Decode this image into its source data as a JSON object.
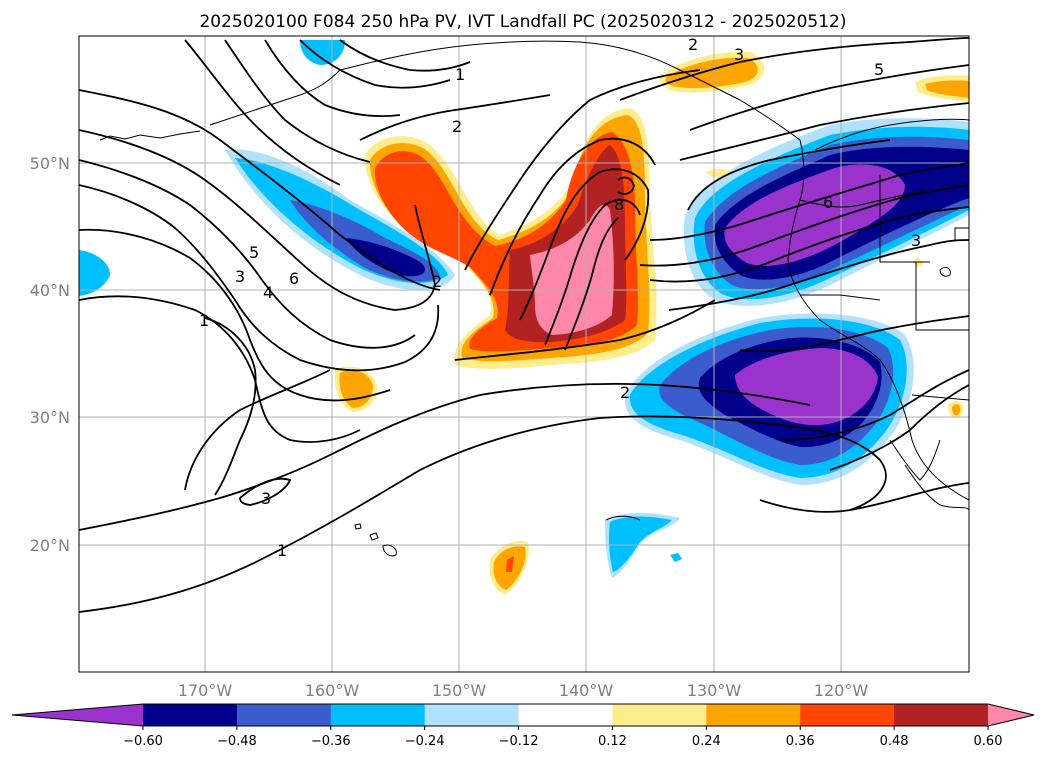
{
  "title": "2025020100 F084 250 hPa PV, IVT Landfall PC (2025020312 - 2025020512)",
  "map": {
    "lon_range": [
      -180,
      -110
    ],
    "lat_range": [
      10,
      60
    ],
    "lon_ticks": [
      "170°W",
      "160°W",
      "150°W",
      "140°W",
      "130°W",
      "120°W"
    ],
    "lat_ticks": [
      "50°N",
      "40°N",
      "30°N",
      "20°N"
    ],
    "grid": true
  },
  "contour_labels": [
    "2",
    "3",
    "5",
    "1",
    "2",
    "8",
    "6",
    "3",
    "5",
    "6",
    "3",
    "4",
    "2",
    "1",
    "2",
    "3",
    "1"
  ],
  "colorbar": {
    "ticks": [
      "−0.60",
      "−0.48",
      "−0.36",
      "−0.24",
      "−0.12",
      "0.12",
      "0.24",
      "0.36",
      "0.48",
      "0.60"
    ],
    "colors": [
      "#9933cc",
      "#00008b",
      "#3a5ccc",
      "#00bfff",
      "#b0e2ff",
      "#ffffff",
      "#ffec8b",
      "#ffa500",
      "#ff4500",
      "#b22222",
      "#ff88aa"
    ]
  }
}
